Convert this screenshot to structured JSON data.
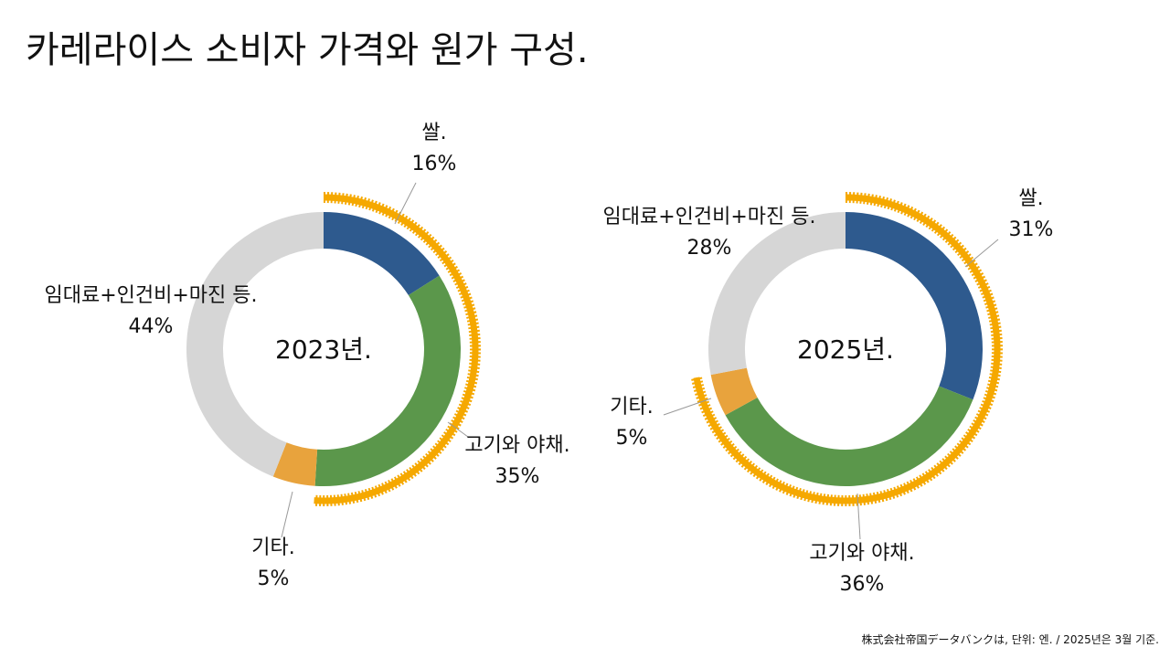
{
  "title": "카레라이스 소비자 가격와 원가 구성.",
  "footnote": "株式会社帝国データバンクは, 단위: 엔.  / 2025년은 3월 기준.",
  "highlight_color": "#F5A800",
  "chart_data": [
    {
      "type": "donut",
      "center_label": "2023년.",
      "highlight_categories": [
        "쌀.",
        "고기와 야채."
      ],
      "slices": [
        {
          "key": "rice",
          "label": "쌀.",
          "value": 16,
          "value_label": "16%",
          "color": "#2E5A8E"
        },
        {
          "key": "meat",
          "label": "고기와 야채.",
          "value": 35,
          "value_label": "35%",
          "color": "#5B974B"
        },
        {
          "key": "other",
          "label": "기타.",
          "value": 5,
          "value_label": "5%",
          "color": "#E8A33D"
        },
        {
          "key": "rent",
          "label": "임대료+인건비+마진 등.",
          "value": 44,
          "value_label": "44%",
          "color": "#D6D6D6"
        }
      ]
    },
    {
      "type": "donut",
      "center_label": "2025년.",
      "highlight_categories": [
        "쌀.",
        "고기와 야채.",
        "기타."
      ],
      "slices": [
        {
          "key": "rice",
          "label": "쌀.",
          "value": 31,
          "value_label": "31%",
          "color": "#2E5A8E"
        },
        {
          "key": "meat",
          "label": "고기와 야채.",
          "value": 36,
          "value_label": "36%",
          "color": "#5B974B"
        },
        {
          "key": "other",
          "label": "기타.",
          "value": 5,
          "value_label": "5%",
          "color": "#E8A33D"
        },
        {
          "key": "rent",
          "label": "임대료+인건비+마진 등.",
          "value": 28,
          "value_label": "28%",
          "color": "#D6D6D6"
        }
      ]
    }
  ]
}
